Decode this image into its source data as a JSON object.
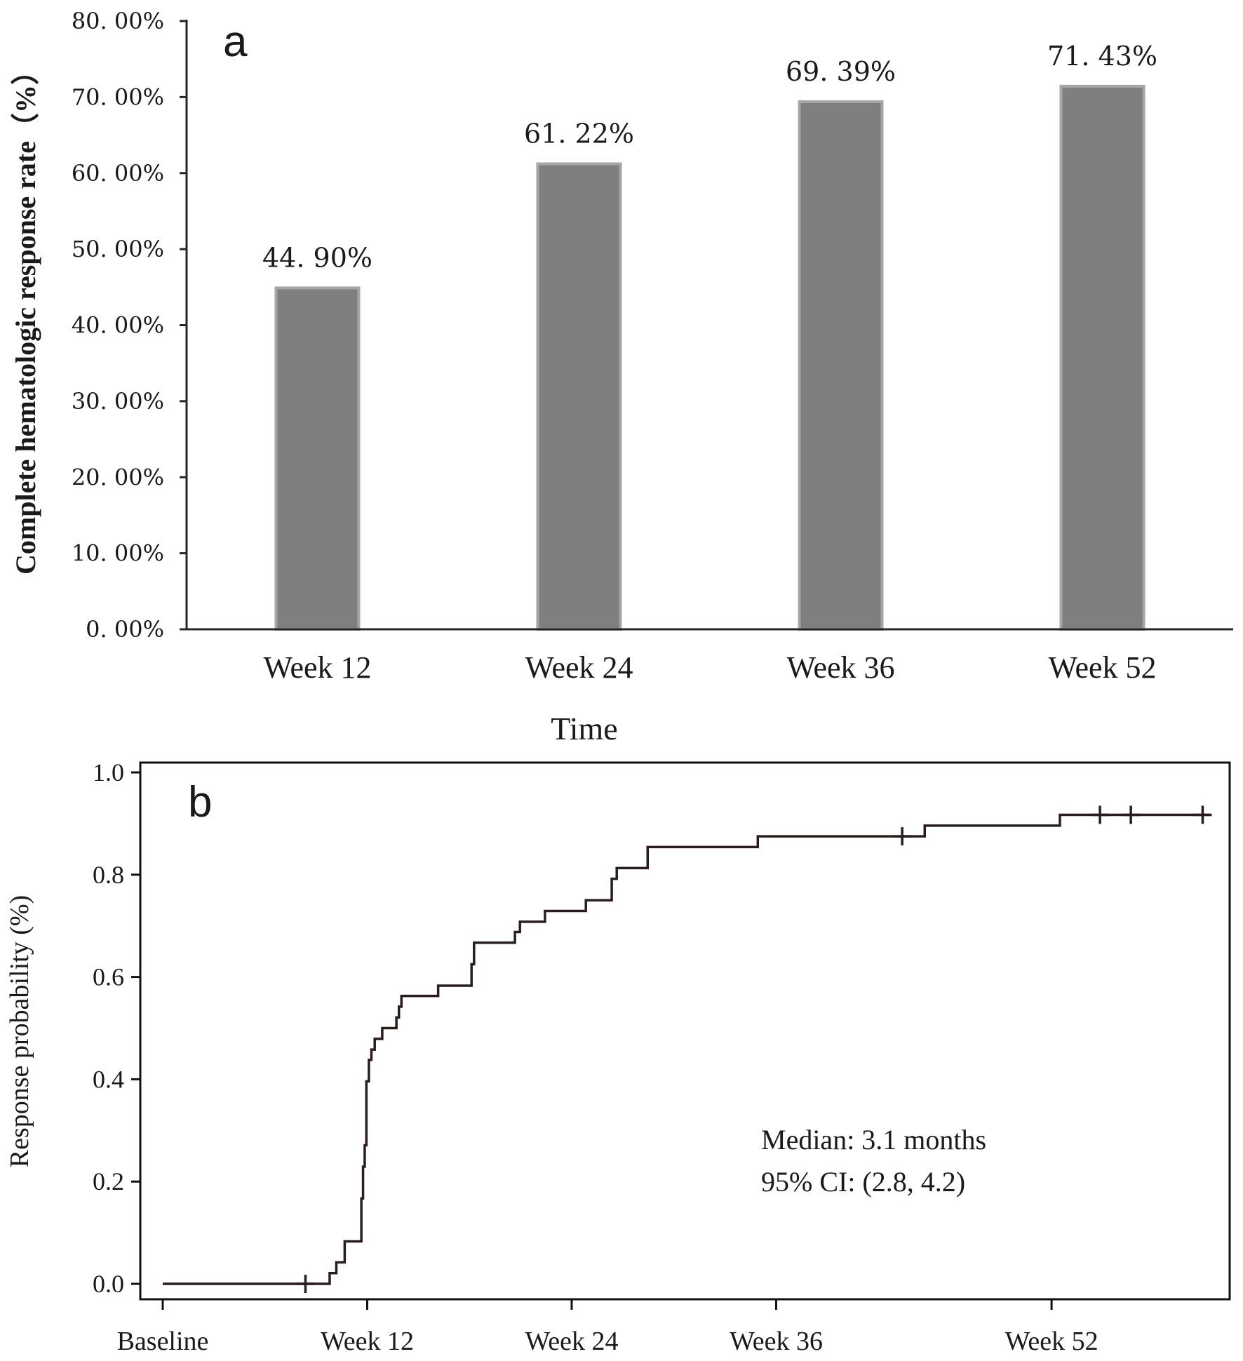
{
  "chart_data": [
    {
      "type": "bar",
      "panel_label": "a",
      "categories": [
        "Week 12",
        "Week 24",
        "Week 36",
        "Week 52"
      ],
      "values": [
        44.9,
        61.22,
        69.39,
        71.43
      ],
      "value_labels": [
        "44. 90%",
        "61. 22%",
        "69. 39%",
        "71. 43%"
      ],
      "ylim": [
        0,
        80
      ],
      "yticks": [
        0,
        10,
        20,
        30,
        40,
        50,
        60,
        70,
        80
      ],
      "ytick_labels": [
        "0. 00%",
        "10. 00%",
        "20. 00%",
        "30. 00%",
        "40. 00%",
        "50. 00%",
        "60. 00%",
        "70. 00%",
        "80. 00%"
      ],
      "xlabel": "Time",
      "ylabel": "Complete hematologic response rate（%）",
      "bar_color": "#7f7f7f",
      "bar_edge_color": "#a6a6a6",
      "grid": false
    },
    {
      "type": "line",
      "subtype": "step (cumulative response curve)",
      "panel_label": "b",
      "xlim": [
        0,
        12.7
      ],
      "ylim": [
        0,
        1.0
      ],
      "xticks": [
        0,
        2.45,
        4.9,
        7.35,
        10.65
      ],
      "xtick_labels": [
        "Baseline",
        "Week 12",
        "Week 24",
        "Week 36",
        "Week 52"
      ],
      "yticks": [
        0,
        0.2,
        0.4,
        0.6,
        0.8,
        1.0
      ],
      "ytick_labels": [
        "0.0",
        "0.2",
        "0.4",
        "0.6",
        "0.8",
        "1.0"
      ],
      "ylabel": "Response probability (%)",
      "series": [
        {
          "steps": [
            [
              0.0,
              0.0
            ],
            [
              2.0,
              0.021
            ],
            [
              2.08,
              0.042
            ],
            [
              2.18,
              0.083
            ],
            [
              2.38,
              0.167
            ],
            [
              2.4,
              0.229
            ],
            [
              2.42,
              0.271
            ],
            [
              2.44,
              0.396
            ],
            [
              2.47,
              0.438
            ],
            [
              2.5,
              0.458
            ],
            [
              2.54,
              0.479
            ],
            [
              2.63,
              0.5
            ],
            [
              2.8,
              0.521
            ],
            [
              2.83,
              0.542
            ],
            [
              2.86,
              0.563
            ],
            [
              3.3,
              0.583
            ],
            [
              3.7,
              0.625
            ],
            [
              3.73,
              0.667
            ],
            [
              4.22,
              0.688
            ],
            [
              4.28,
              0.708
            ],
            [
              4.58,
              0.729
            ],
            [
              5.07,
              0.75
            ],
            [
              5.38,
              0.792
            ],
            [
              5.44,
              0.813
            ],
            [
              5.81,
              0.854
            ],
            [
              7.13,
              0.875
            ],
            [
              9.13,
              0.896
            ],
            [
              10.75,
              0.917
            ],
            [
              12.55,
              0.917
            ]
          ],
          "censored": [
            [
              1.71,
              0.0
            ],
            [
              8.86,
              0.875
            ],
            [
              11.23,
              0.917
            ],
            [
              11.6,
              0.917
            ],
            [
              12.46,
              0.917
            ]
          ],
          "color": "#2b1d1d"
        }
      ],
      "annotations": [
        "Median: 3.1 months",
        "95% CI: (2.8, 4.2)"
      ]
    }
  ]
}
